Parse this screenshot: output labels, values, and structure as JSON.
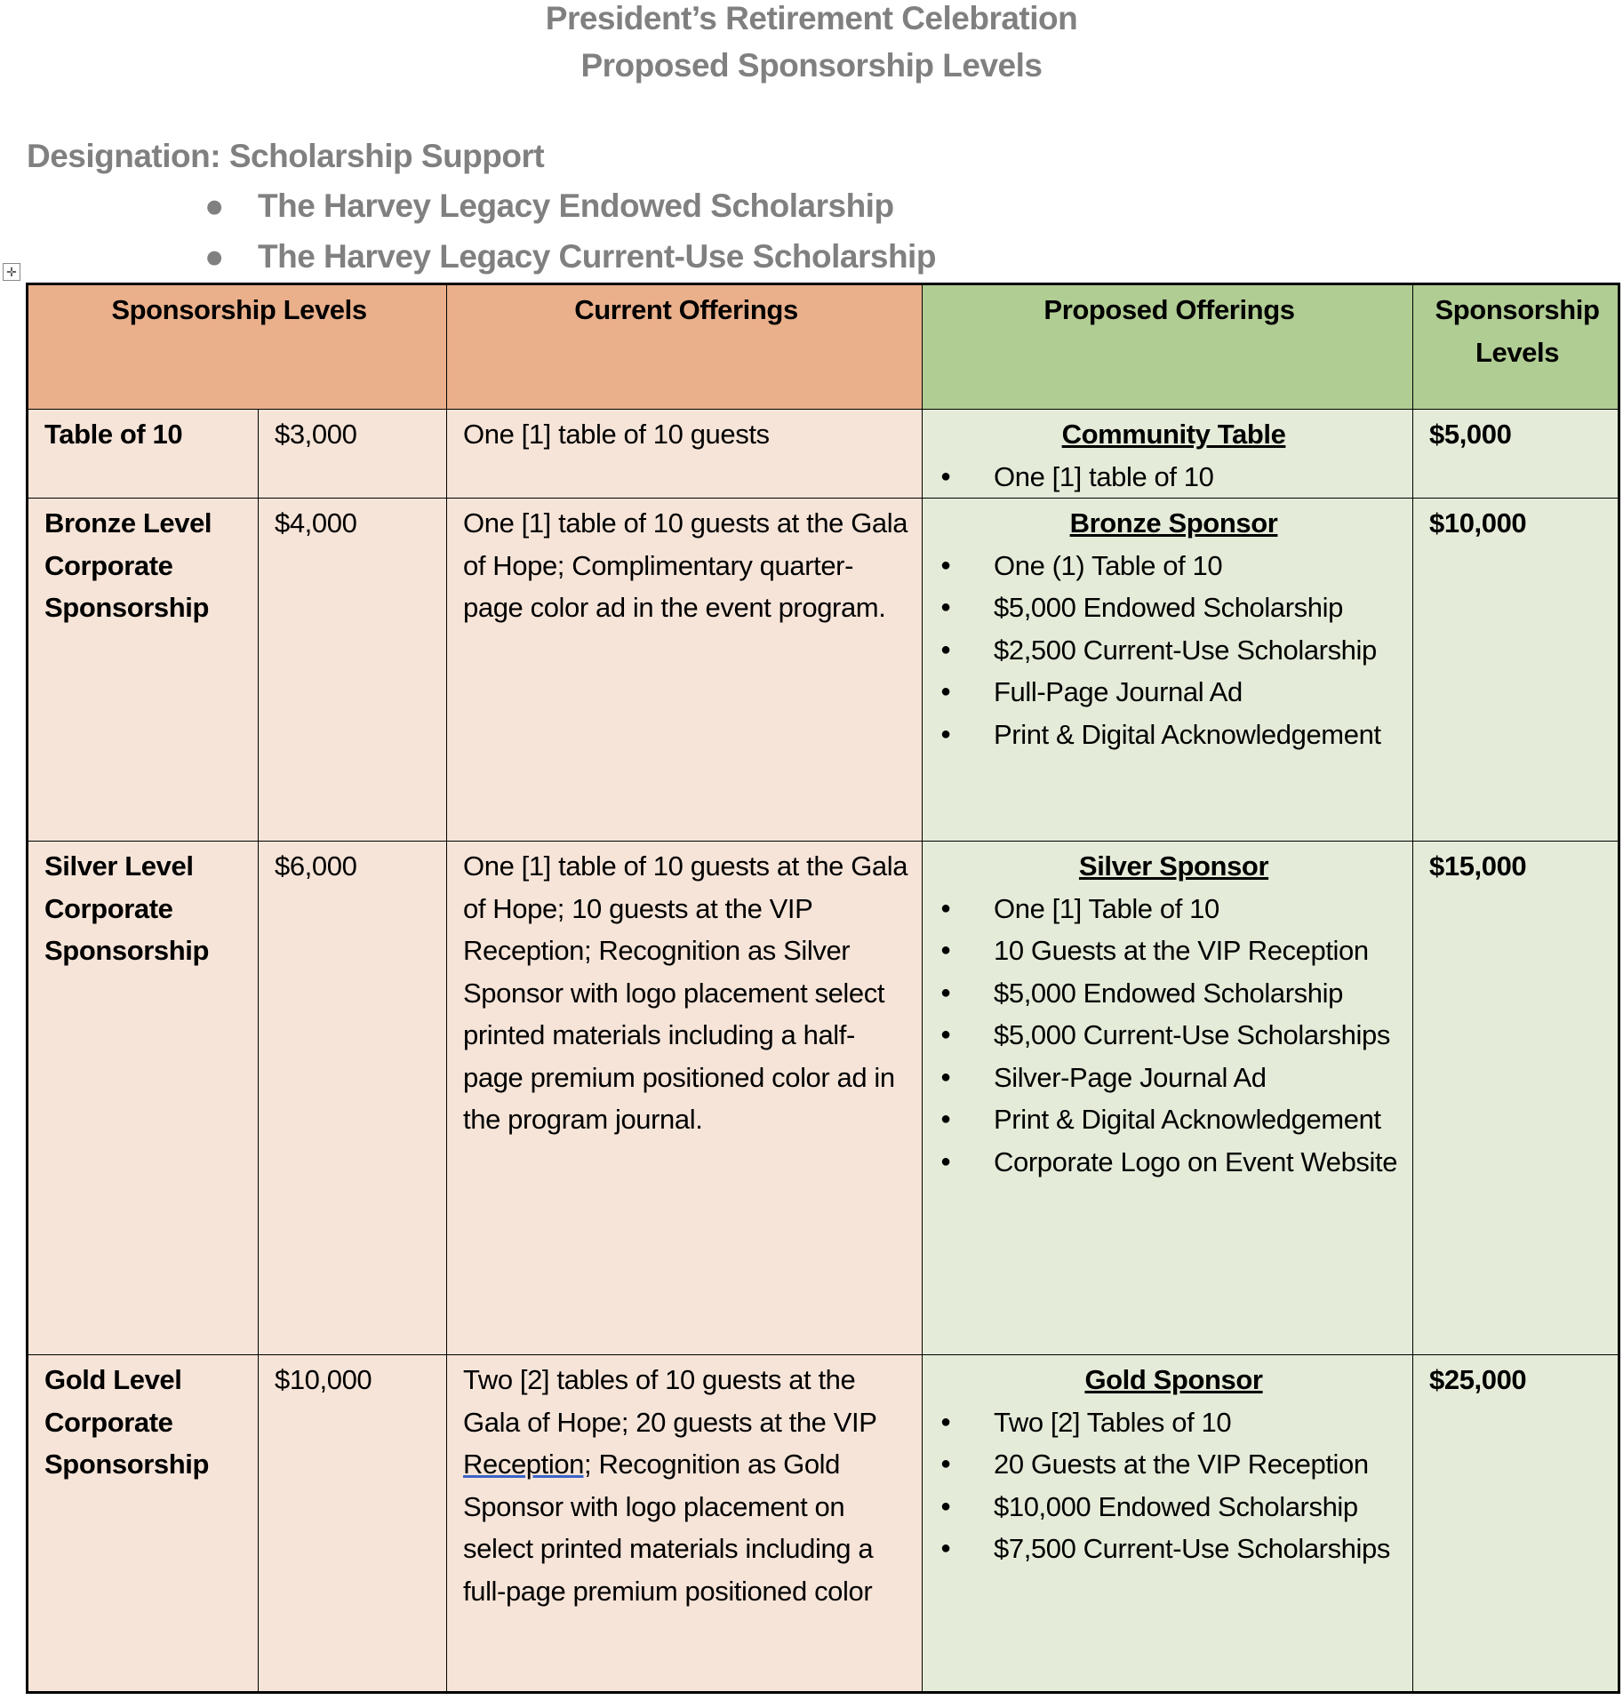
{
  "header": {
    "title": "President’s Retirement Celebration",
    "subtitle": "Proposed Sponsorship Levels"
  },
  "designation": {
    "label": "Designation:  Scholarship Support",
    "items": [
      "The Harvey Legacy Endowed Scholarship",
      "The Harvey Legacy Current-Use Scholarship"
    ]
  },
  "table": {
    "headers": [
      "Sponsorship Levels",
      "Current Offerings",
      "Proposed Offerings",
      "Sponsorship Levels"
    ],
    "rows": [
      {
        "level": "Table of 10",
        "price": "$3,000",
        "current": "One [1] table of 10 guests",
        "proposed_title": "Community Table",
        "proposed_items": [
          "One [1] table of 10"
        ],
        "new_price": "$5,000"
      },
      {
        "level": "Bronze Level Corporate Sponsorship",
        "price": "$4,000",
        "current": "One [1] table of 10 guests at the Gala of Hope; Complimentary quarter-page color ad in the event program.",
        "proposed_title": "Bronze Sponsor",
        "proposed_items": [
          "One (1) Table of 10",
          "$5,000 Endowed Scholarship",
          "$2,500 Current-Use Scholarship",
          "Full-Page Journal Ad",
          "Print & Digital Acknowledgement"
        ],
        "new_price": "$10,000"
      },
      {
        "level": "Silver Level Corporate Sponsorship",
        "price": "$6,000",
        "current": "One [1] table of 10 guests at the Gala of Hope; 10 guests at the VIP Reception; Recognition as Silver Sponsor with logo placement select printed materials including a half-page premium positioned color ad in the program journal.",
        "proposed_title": "Silver Sponsor",
        "proposed_items": [
          "One [1] Table of 10",
          "10 Guests at the VIP Reception",
          "$5,000 Endowed Scholarship",
          "$5,000 Current-Use Scholarships",
          "Silver-Page Journal Ad",
          "Print & Digital Acknowledgement",
          "Corporate Logo on Event Website"
        ],
        "new_price": "$15,000"
      },
      {
        "level": "Gold Level Corporate Sponsorship",
        "price": "$10,000",
        "current": "Two [2] tables of 10 guests at the Gala of Hope; 20 guests at the VIP Reception; Recognition as Gold Sponsor with logo placement on select printed materials including a full-page premium positioned color",
        "proposed_title": "Gold Sponsor",
        "proposed_items": [
          "Two [2] Tables of 10",
          "20 Guests at the VIP Reception",
          "$10,000 Endowed Scholarship",
          "$7,500 Current-Use Scholarships"
        ],
        "new_price": "$25,000"
      }
    ]
  }
}
